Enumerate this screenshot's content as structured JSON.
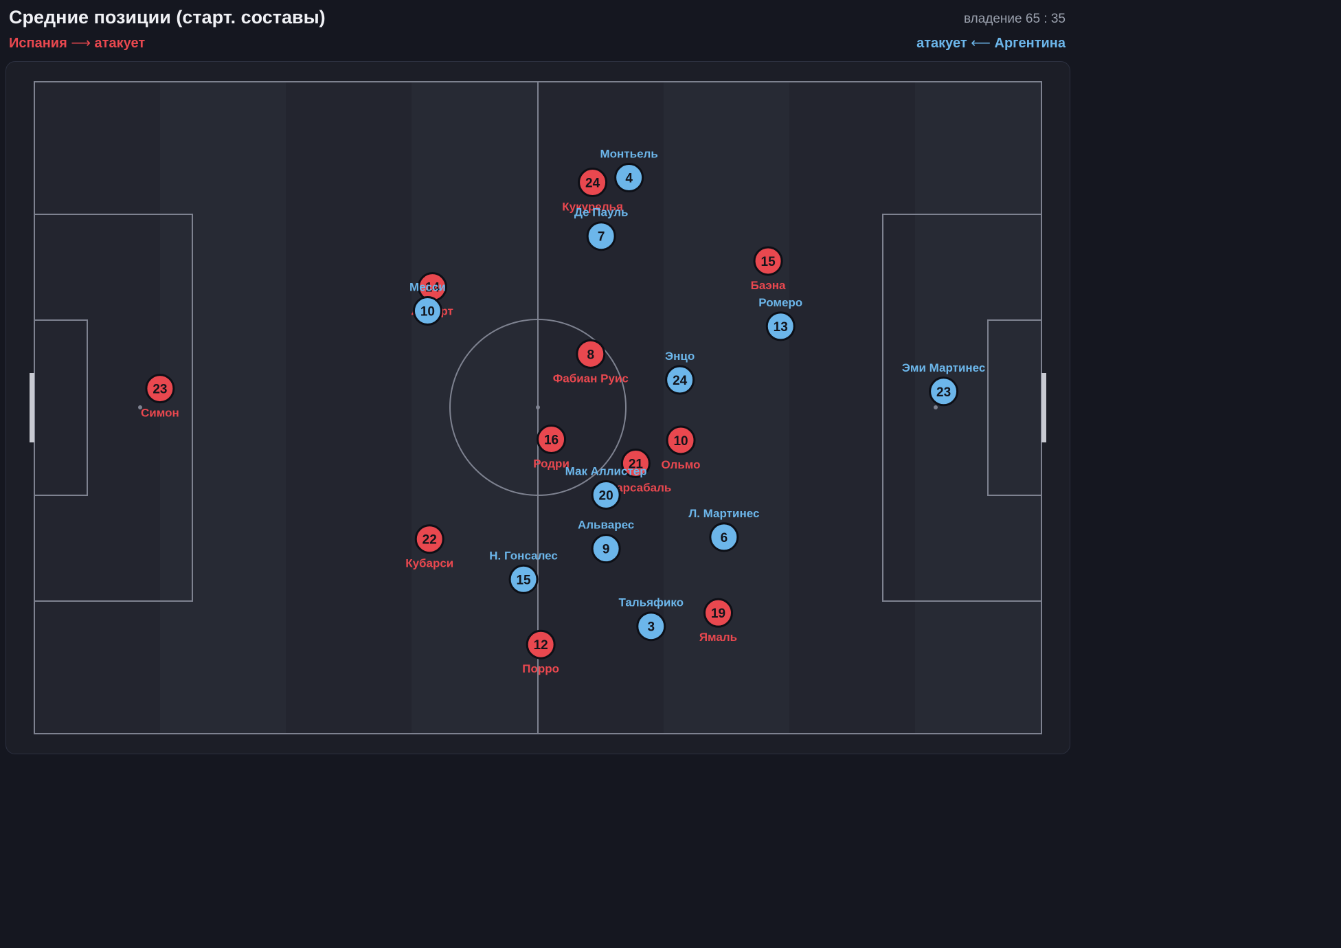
{
  "header": {
    "title": "Средние позиции (старт. составы)",
    "possession": "владение 65 : 35"
  },
  "teams": {
    "home": {
      "name": "Испания",
      "attack_text": "атакует",
      "arrow": "⟶",
      "color": "#e9484f"
    },
    "away": {
      "name": "Аргентина",
      "attack_text": "атакует",
      "arrow": "⟵",
      "color": "#6cb6ea"
    }
  },
  "colors": {
    "background": "#151720",
    "pitch": "#23252f",
    "pitch_stripe": "#272a34",
    "lines": "#7e8290",
    "marker_outline": "#0d0f16"
  },
  "chart_data": {
    "type": "scatter",
    "x_range": [
      0,
      105
    ],
    "y_range": [
      0,
      68
    ],
    "series": [
      {
        "team": "home",
        "color": "#e9484f",
        "players": [
          {
            "number": "23",
            "name": "Симон",
            "x": 13.1,
            "y": 32.0
          },
          {
            "number": "24",
            "name": "Кукурелья",
            "x": 58.2,
            "y": 10.5
          },
          {
            "number": "14",
            "name": "Лапорт",
            "x": 41.5,
            "y": 21.4
          },
          {
            "number": "15",
            "name": "Баэна",
            "x": 76.5,
            "y": 18.7
          },
          {
            "number": "8",
            "name": "Фабиан Руис",
            "x": 58.0,
            "y": 28.4
          },
          {
            "number": "16",
            "name": "Родри",
            "x": 53.9,
            "y": 37.3
          },
          {
            "number": "10",
            "name": "Ольмо",
            "x": 67.4,
            "y": 37.4
          },
          {
            "number": "21",
            "name": "Ойарсабаль",
            "x": 62.7,
            "y": 39.8
          },
          {
            "number": "22",
            "name": "Кубарси",
            "x": 41.2,
            "y": 47.7
          },
          {
            "number": "19",
            "name": "Ямаль",
            "x": 71.3,
            "y": 55.4
          },
          {
            "number": "12",
            "name": "Порро",
            "x": 52.8,
            "y": 58.7
          }
        ]
      },
      {
        "team": "away",
        "color": "#6cb6ea",
        "players": [
          {
            "number": "4",
            "name": "Монтьель",
            "x": 62.0,
            "y": 10.0
          },
          {
            "number": "7",
            "name": "Де Пауль",
            "x": 59.1,
            "y": 16.1
          },
          {
            "number": "10",
            "name": "Месси",
            "x": 41.0,
            "y": 23.9
          },
          {
            "number": "13",
            "name": "Ромеро",
            "x": 77.8,
            "y": 25.5
          },
          {
            "number": "24",
            "name": "Энцо",
            "x": 67.3,
            "y": 31.1
          },
          {
            "number": "23",
            "name": "Эми Мартинес",
            "x": 94.8,
            "y": 32.3
          },
          {
            "number": "20",
            "name": "Мак Аллистер",
            "x": 59.6,
            "y": 43.1
          },
          {
            "number": "9",
            "name": "Альварес",
            "x": 59.6,
            "y": 48.7
          },
          {
            "number": "6",
            "name": "Л. Мартинес",
            "x": 71.9,
            "y": 47.5
          },
          {
            "number": "15",
            "name": "Н. Гонсалес",
            "x": 51.0,
            "y": 51.9
          },
          {
            "number": "3",
            "name": "Тальяфико",
            "x": 64.3,
            "y": 56.8
          }
        ]
      }
    ]
  }
}
